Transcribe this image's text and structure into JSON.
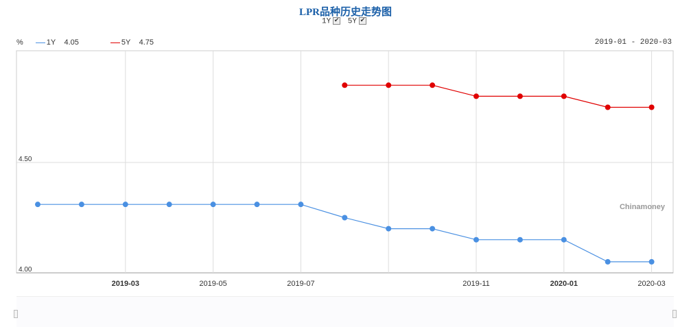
{
  "title": "LPR品种历史走势图",
  "toggles": [
    {
      "label": "1Y",
      "checked": true
    },
    {
      "label": "5Y",
      "checked": true
    }
  ],
  "legend": {
    "unit": "%",
    "items": [
      {
        "name": "1Y",
        "value": "4.05",
        "color": "#4a90e2"
      },
      {
        "name": "5Y",
        "value": "4.75",
        "color": "#e00000"
      }
    ]
  },
  "range_label": "2019-01 - 2020-03",
  "watermark": "Chinamoney",
  "chart_data": {
    "type": "line",
    "x": [
      "2019-01",
      "2019-02",
      "2019-03",
      "2019-04",
      "2019-05",
      "2019-06",
      "2019-07",
      "2019-08",
      "2019-09",
      "2019-10",
      "2019-11",
      "2019-12",
      "2020-01",
      "2020-02",
      "2020-03"
    ],
    "xtick_labels": [
      "2019-03",
      "2019-05",
      "2019-07",
      "2019-11",
      "2020-01",
      "2020-03"
    ],
    "bold_ticks": [
      "2019-03",
      "2020-01"
    ],
    "ylim": [
      4.0,
      5.0
    ],
    "ytick_labels": [
      "4.00",
      "4.50"
    ],
    "grid": true,
    "legend_position": "top-left",
    "series": [
      {
        "name": "1Y",
        "color": "#4a90e2",
        "values": [
          4.31,
          4.31,
          4.31,
          4.31,
          4.31,
          4.31,
          4.31,
          4.25,
          4.2,
          4.2,
          4.15,
          4.15,
          4.15,
          4.05,
          4.05
        ]
      },
      {
        "name": "5Y",
        "color": "#e00000",
        "values": [
          null,
          null,
          null,
          null,
          null,
          null,
          null,
          4.85,
          4.85,
          4.85,
          4.8,
          4.8,
          4.8,
          4.75,
          4.75
        ]
      }
    ]
  }
}
